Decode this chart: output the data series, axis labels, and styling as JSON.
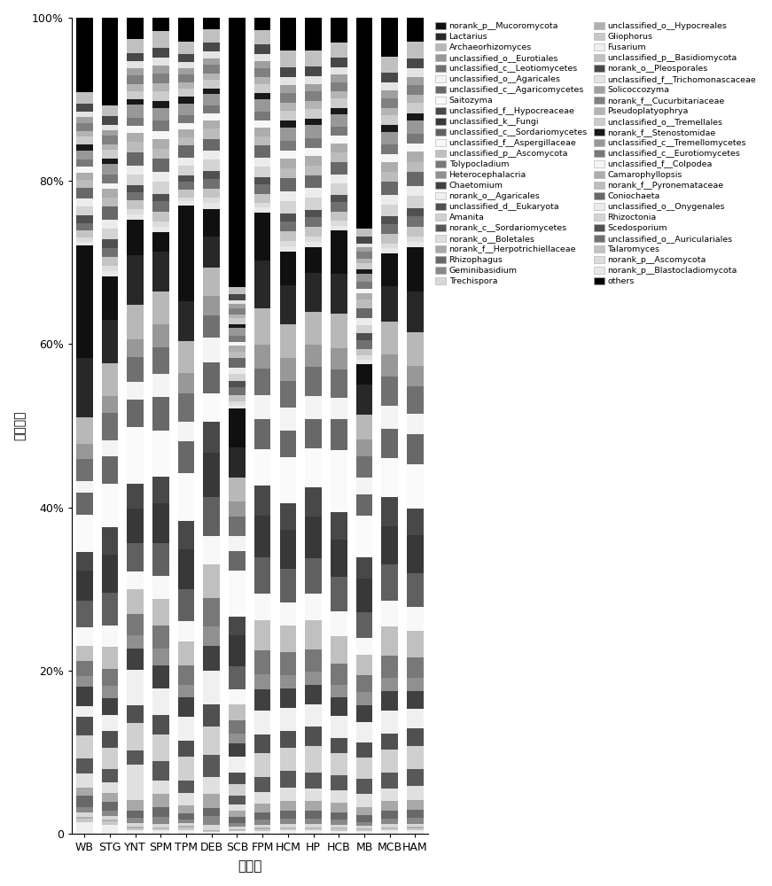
{
  "samples": [
    "WB",
    "STG",
    "YNT",
    "SPM",
    "TPM",
    "DEB",
    "SCB",
    "FPM",
    "HCM",
    "HP",
    "HCB",
    "MB",
    "MCB",
    "HAM"
  ],
  "species_order": [
    "Fusarium",
    "Gliophorus",
    "unclassified_o__Hypocreales",
    "Trechispora",
    "Geminibasidium",
    "Rhizophagus",
    "norank_f__Herpotrichiellaceae",
    "norank_o__Boletales",
    "norank_c__Sordariomycetes",
    "Amanita",
    "unclassified_d__Eukaryota",
    "norank_o__Agaricales",
    "Chaetomium",
    "Heterocephalacria",
    "Tolypocladium",
    "unclassified_p__Ascomycota",
    "unclassified_f__Aspergillaceae",
    "unclassified_c__Sordariomycetes",
    "unclassified_k__Fungi",
    "unclassified_f__Hypocreaceae",
    "Saitozyma",
    "unclassified_c__Agaricomycetes",
    "unclassified_o__Agaricales",
    "unclassified_c__Leotiomycetes",
    "unclassified_o__Eurotiales",
    "Archaeorhizomyces",
    "Lactarius",
    "norank_p__Mucoromycota",
    "norank_p__Blastocladiomycota",
    "norank_p__Ascomycota",
    "Talaromyces",
    "unclassified_o__Auriculariales",
    "Scedosporium",
    "Rhizoctonia",
    "unclassified_o__Onygenales",
    "Coniochaeta",
    "norank_f__Pyronemataceae",
    "Camarophyllopsis",
    "unclassified_f__Colpodea",
    "unclassified_c__Eurotiomycetes",
    "unclassified_c__Tremellomycetes",
    "norank_f__Stenostomidae",
    "unclassified_o__Tremellales",
    "Pseudoplatyophrya",
    "norank_f__Cucurbitariaceae",
    "Solicoccozyma",
    "unclassified_f__Trichomonascaceae",
    "norank_o__Pleosporales",
    "unclassified_p__Basidiomycota",
    "others"
  ],
  "colors": [
    "#efefef",
    "#c8c8c8",
    "#b0b0b0",
    "#d8d8d8",
    "#888888",
    "#686868",
    "#a8a8a8",
    "#e0e0e0",
    "#585858",
    "#d0d0d0",
    "#505050",
    "#f0f0f0",
    "#404040",
    "#909090",
    "#787878",
    "#c0c0c0",
    "#f8f8f8",
    "#606060",
    "#383838",
    "#484848",
    "#fafafa",
    "#686868",
    "#f4f4f4",
    "#707070",
    "#989898",
    "#b8b8b8",
    "#282828",
    "#101010",
    "#e8e8e8",
    "#dcdcdc",
    "#c4c4c4",
    "#707070",
    "#505050",
    "#d4d4d4",
    "#ececec",
    "#686868",
    "#bcbcbc",
    "#adadad",
    "#f6f6f6",
    "#787878",
    "#989898",
    "#181818",
    "#cccccc",
    "#b4b4b4",
    "#808080",
    "#a0a0a0",
    "#e4e4e4",
    "#484848",
    "#c0c0c0",
    "#000000"
  ],
  "data": {
    "WB": [
      1.5,
      0.5,
      0.3,
      0.5,
      0.8,
      1.5,
      1.0,
      2.0,
      2.0,
      3.0,
      2.5,
      1.5,
      2.5,
      1.5,
      2.0,
      2.0,
      2.5,
      3.5,
      4.0,
      2.5,
      5.0,
      3.0,
      1.5,
      3.0,
      2.0,
      3.5,
      8.0,
      15.0,
      0.5,
      0.5,
      1.0,
      1.0,
      1.0,
      1.2,
      1.0,
      1.5,
      1.0,
      1.0,
      0.8,
      1.0,
      1.2,
      0.8,
      1.0,
      0.8,
      1.0,
      0.8,
      0.8,
      1.0,
      1.5,
      10.0
    ],
    "STG": [
      0.8,
      0.3,
      0.2,
      0.3,
      0.5,
      0.8,
      0.8,
      1.0,
      1.2,
      2.0,
      1.5,
      1.5,
      1.5,
      1.2,
      1.5,
      2.0,
      2.0,
      3.0,
      3.5,
      2.5,
      4.0,
      2.5,
      1.5,
      2.5,
      1.5,
      3.0,
      4.0,
      4.0,
      0.5,
      0.5,
      0.8,
      0.8,
      0.8,
      1.0,
      0.8,
      1.2,
      0.8,
      0.8,
      0.5,
      0.8,
      1.0,
      0.5,
      0.8,
      0.5,
      0.8,
      0.5,
      0.5,
      0.8,
      1.0,
      8.0
    ],
    "YNT": [
      0.5,
      0.3,
      0.2,
      0.5,
      0.8,
      1.0,
      1.5,
      5.0,
      2.0,
      4.0,
      2.5,
      5.0,
      3.0,
      2.0,
      3.0,
      3.5,
      2.5,
      4.0,
      5.0,
      3.5,
      8.0,
      4.0,
      2.5,
      3.5,
      2.5,
      5.0,
      7.0,
      5.0,
      0.8,
      0.8,
      1.2,
      1.2,
      1.0,
      1.5,
      1.2,
      2.0,
      1.5,
      1.2,
      1.0,
      1.2,
      1.8,
      0.8,
      1.2,
      1.0,
      1.2,
      1.0,
      1.0,
      1.2,
      2.0,
      3.0
    ],
    "SPM": [
      0.5,
      0.3,
      0.2,
      0.5,
      1.0,
      1.5,
      2.0,
      2.0,
      3.0,
      4.0,
      3.0,
      4.0,
      3.5,
      2.5,
      3.5,
      4.0,
      3.5,
      5.0,
      6.0,
      4.0,
      7.0,
      5.0,
      3.5,
      4.0,
      3.5,
      5.0,
      6.0,
      3.0,
      0.8,
      0.8,
      1.5,
      1.5,
      1.2,
      1.8,
      1.5,
      2.0,
      1.5,
      1.5,
      1.2,
      1.5,
      2.0,
      1.0,
      1.5,
      1.2,
      1.5,
      1.2,
      1.2,
      1.5,
      2.5,
      2.0
    ],
    "TPM": [
      0.5,
      0.3,
      0.2,
      0.3,
      0.5,
      0.8,
      1.0,
      1.5,
      1.5,
      3.0,
      2.0,
      3.0,
      2.5,
      1.5,
      2.5,
      3.0,
      2.5,
      4.0,
      5.0,
      3.5,
      6.0,
      4.0,
      2.5,
      3.5,
      2.5,
      4.0,
      5.0,
      12.0,
      0.5,
      0.5,
      1.0,
      1.0,
      0.8,
      1.2,
      1.0,
      1.5,
      1.0,
      1.0,
      0.8,
      1.0,
      1.5,
      0.8,
      1.0,
      0.8,
      1.0,
      0.8,
      0.8,
      1.0,
      1.5,
      3.0
    ],
    "DEB": [
      0.3,
      0.2,
      0.1,
      1.0,
      1.5,
      1.5,
      2.5,
      3.0,
      4.0,
      5.0,
      4.0,
      6.0,
      4.5,
      3.5,
      5.0,
      6.0,
      5.0,
      7.0,
      8.0,
      5.5,
      5.0,
      5.5,
      4.5,
      4.0,
      3.5,
      5.0,
      5.5,
      5.0,
      1.0,
      1.0,
      1.5,
      1.8,
      1.5,
      2.0,
      1.5,
      2.2,
      1.8,
      1.5,
      1.2,
      1.5,
      2.0,
      1.0,
      1.5,
      1.2,
      1.5,
      1.2,
      1.2,
      1.5,
      2.5,
      2.0
    ],
    "SCB": [
      0.3,
      0.2,
      0.1,
      0.3,
      0.5,
      0.8,
      0.8,
      0.8,
      1.2,
      1.5,
      1.5,
      2.0,
      1.8,
      1.2,
      1.8,
      2.0,
      2.0,
      3.0,
      4.0,
      2.5,
      6.0,
      2.5,
      2.0,
      2.5,
      2.0,
      3.0,
      4.0,
      5.0,
      0.5,
      0.5,
      0.8,
      1.0,
      0.8,
      1.0,
      0.8,
      1.2,
      0.8,
      0.8,
      0.5,
      0.8,
      1.0,
      0.5,
      0.8,
      0.5,
      0.8,
      0.5,
      0.5,
      0.8,
      1.0,
      35.0
    ],
    "FPM": [
      0.5,
      0.3,
      0.2,
      0.5,
      0.8,
      1.2,
      1.5,
      2.0,
      2.5,
      4.0,
      3.0,
      4.0,
      3.5,
      2.5,
      4.0,
      5.0,
      4.5,
      6.0,
      7.0,
      5.0,
      6.0,
      5.0,
      4.0,
      4.5,
      4.0,
      6.0,
      8.0,
      8.0,
      0.8,
      0.8,
      1.5,
      1.5,
      1.2,
      1.8,
      1.5,
      2.0,
      1.5,
      1.5,
      1.2,
      1.5,
      2.0,
      1.0,
      1.5,
      1.2,
      1.5,
      1.2,
      1.2,
      1.5,
      2.5,
      2.0
    ],
    "HCM": [
      0.5,
      0.3,
      0.2,
      0.5,
      0.8,
      1.2,
      1.5,
      2.0,
      2.5,
      3.5,
      2.5,
      3.5,
      3.0,
      2.0,
      3.5,
      4.0,
      3.5,
      5.0,
      6.0,
      4.0,
      7.0,
      4.0,
      3.5,
      4.0,
      3.5,
      5.0,
      6.0,
      5.0,
      0.8,
      0.8,
      1.5,
      1.5,
      1.2,
      1.8,
      1.5,
      2.0,
      1.5,
      1.5,
      1.2,
      1.5,
      2.0,
      1.0,
      1.5,
      1.2,
      1.5,
      1.2,
      1.2,
      1.5,
      2.5,
      5.0
    ],
    "HP": [
      0.5,
      0.3,
      0.2,
      0.5,
      0.8,
      1.2,
      1.5,
      2.0,
      2.5,
      4.0,
      3.0,
      3.5,
      3.0,
      2.0,
      3.5,
      4.5,
      4.0,
      5.5,
      6.5,
      4.5,
      6.0,
      4.5,
      3.5,
      4.5,
      3.5,
      5.0,
      6.0,
      4.0,
      0.8,
      0.8,
      1.5,
      1.5,
      1.2,
      1.8,
      1.5,
      2.0,
      1.5,
      1.5,
      1.2,
      1.5,
      2.0,
      1.0,
      1.5,
      1.2,
      1.5,
      1.2,
      1.2,
      1.5,
      2.5,
      5.0
    ],
    "HCB": [
      0.5,
      0.3,
      0.2,
      0.5,
      0.8,
      1.2,
      1.5,
      2.0,
      2.5,
      3.5,
      2.5,
      3.5,
      3.0,
      2.0,
      3.5,
      4.5,
      4.0,
      5.5,
      6.0,
      4.5,
      10.0,
      5.0,
      3.5,
      4.5,
      3.5,
      5.5,
      6.5,
      7.0,
      0.8,
      0.8,
      1.5,
      1.5,
      1.2,
      1.8,
      1.5,
      2.0,
      1.5,
      1.5,
      1.2,
      1.5,
      2.0,
      1.0,
      1.5,
      1.2,
      1.5,
      1.2,
      1.2,
      1.5,
      2.5,
      4.0
    ],
    "MB": [
      0.3,
      0.2,
      0.1,
      0.3,
      0.5,
      0.8,
      1.0,
      1.5,
      1.8,
      2.5,
      1.8,
      2.5,
      2.0,
      1.5,
      2.0,
      2.5,
      2.0,
      3.0,
      4.0,
      2.5,
      5.0,
      2.5,
      2.0,
      2.5,
      2.0,
      3.0,
      3.5,
      2.5,
      0.5,
      0.5,
      0.8,
      1.0,
      0.8,
      1.0,
      0.8,
      1.2,
      1.0,
      0.8,
      0.5,
      0.8,
      1.0,
      0.5,
      0.8,
      0.5,
      0.8,
      0.5,
      0.5,
      0.8,
      1.0,
      25.0
    ],
    "MCB": [
      0.5,
      0.3,
      0.2,
      0.5,
      0.8,
      1.2,
      1.5,
      2.0,
      2.5,
      3.5,
      2.5,
      3.5,
      3.0,
      2.0,
      3.5,
      4.5,
      4.0,
      5.5,
      6.0,
      4.5,
      6.0,
      4.5,
      3.5,
      4.5,
      3.5,
      5.0,
      5.5,
      5.0,
      0.8,
      0.8,
      1.5,
      1.5,
      1.2,
      1.8,
      1.5,
      2.0,
      1.5,
      1.5,
      1.2,
      1.5,
      2.0,
      1.0,
      1.5,
      1.2,
      1.5,
      1.2,
      1.2,
      1.5,
      2.5,
      6.0
    ],
    "HAM": [
      0.5,
      0.3,
      0.2,
      0.5,
      0.8,
      1.2,
      1.5,
      2.0,
      2.5,
      3.5,
      2.5,
      3.0,
      2.5,
      2.0,
      3.0,
      4.0,
      3.5,
      5.0,
      5.5,
      4.0,
      6.5,
      4.5,
      3.0,
      4.0,
      3.0,
      5.0,
      6.0,
      6.5,
      0.8,
      0.8,
      1.5,
      1.5,
      1.2,
      1.8,
      1.5,
      2.0,
      1.5,
      1.5,
      1.2,
      1.5,
      2.0,
      1.0,
      1.5,
      1.2,
      1.5,
      1.2,
      1.2,
      1.5,
      2.5,
      3.5
    ]
  },
  "legend_col1": [
    "norank_p__Mucoromycota",
    "Lactarius",
    "Archaeorhizomyces",
    "unclassified_o__Eurotiales",
    "unclassified_c__Leotiomycetes",
    "unclassified_o__Agaricales",
    "unclassified_c__Agaricomycetes",
    "Saitozyma",
    "unclassified_f__Hypocreaceae",
    "unclassified_k__Fungi",
    "unclassified_c__Sordariomycetes",
    "unclassified_f__Aspergillaceae",
    "unclassified_p__Ascomycota",
    "Tolypocladium",
    "Heterocephalacria",
    "Chaetomium",
    "norank_o__Agaricales",
    "unclassified_d__Eukaryota",
    "Amanita",
    "norank_c__Sordariomycetes",
    "norank_o__Boletales",
    "norank_f__Herpotrichiellaceae",
    "Rhizophagus",
    "Geminibasidium",
    "Trechispora",
    "unclassified_o__Hypocreales",
    "Gliophorus",
    "Fusarium"
  ],
  "legend_col2": [
    "unclassified_p__Basidiomycota",
    "norank_o__Pleosporales",
    "unclassified_f__Trichomonascaceae",
    "Solicoccozyma",
    "norank_f__Cucurbitariaceae",
    "Pseudoplatyophrya",
    "unclassified_o__Tremellales",
    "norank_f__Stenostomidae",
    "unclassified_c__Tremellomycetes",
    "unclassified_c__Eurotiomycetes",
    "unclassified_f__Colpodea",
    "Camarophyllopsis",
    "norank_f__Pyronemataceae",
    "Coniochaeta",
    "unclassified_o__Onygenales",
    "Rhizoctonia",
    "Scedosporium",
    "unclassified_o__Auriculariales",
    "Talaromyces",
    "norank_p__Ascomycota",
    "norank_p__Blastocladiomycota",
    "others"
  ],
  "ylabel": "相对丰度",
  "xlabel": "采样点"
}
